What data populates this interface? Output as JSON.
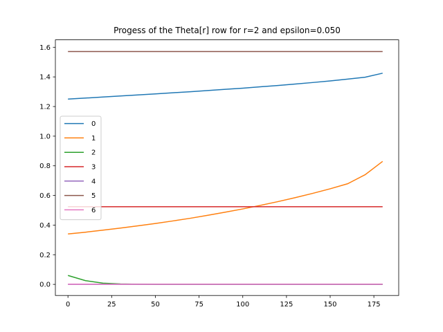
{
  "chart_data": {
    "type": "line",
    "title": "Progess of the Theta[r] row for r=2 and epsilon=0.050",
    "xlabel": "",
    "ylabel": "",
    "xlim": [
      -7.2,
      189.2
    ],
    "ylim": [
      -0.075,
      1.65
    ],
    "x_ticks": [
      0,
      25,
      50,
      75,
      100,
      125,
      150,
      175
    ],
    "y_ticks": [
      0.0,
      0.2,
      0.4,
      0.6,
      0.8,
      1.0,
      1.2,
      1.4,
      1.6
    ],
    "x_tick_labels": [
      "0",
      "25",
      "50",
      "75",
      "100",
      "125",
      "150",
      "175"
    ],
    "y_tick_labels": [
      "0.0",
      "0.2",
      "0.4",
      "0.6",
      "0.8",
      "1.0",
      "1.2",
      "1.4",
      "1.6"
    ],
    "grid": false,
    "legend": {
      "placement": "center-left"
    },
    "x": [
      0,
      10,
      20,
      30,
      40,
      50,
      60,
      70,
      80,
      90,
      100,
      110,
      120,
      130,
      140,
      150,
      160,
      170,
      180
    ],
    "series": [
      {
        "name": "0",
        "color": "#1f77b4",
        "values": [
          1.25,
          1.257,
          1.264,
          1.271,
          1.278,
          1.285,
          1.293,
          1.3,
          1.308,
          1.316,
          1.324,
          1.333,
          1.342,
          1.352,
          1.362,
          1.373,
          1.385,
          1.398,
          1.425
        ]
      },
      {
        "name": "1",
        "color": "#ff7f0e",
        "values": [
          0.34,
          0.352,
          0.366,
          0.38,
          0.395,
          0.411,
          0.428,
          0.446,
          0.466,
          0.487,
          0.509,
          0.533,
          0.558,
          0.585,
          0.614,
          0.645,
          0.679,
          0.74,
          0.83
        ]
      },
      {
        "name": "2",
        "color": "#2ca02c",
        "values": [
          0.06,
          0.025,
          0.008,
          0.003,
          0.001,
          0.0,
          0.0,
          0.0,
          0.0,
          0.0,
          0.0,
          0.0,
          0.0,
          0.0,
          0.0,
          0.0,
          0.0,
          0.0,
          0.0
        ]
      },
      {
        "name": "3",
        "color": "#d62728",
        "values": [
          0.524,
          0.524,
          0.524,
          0.524,
          0.524,
          0.524,
          0.524,
          0.524,
          0.524,
          0.524,
          0.524,
          0.524,
          0.524,
          0.524,
          0.524,
          0.524,
          0.524,
          0.524,
          0.524
        ]
      },
      {
        "name": "4",
        "color": "#9467bd",
        "values": [
          0.0,
          0.0,
          0.0,
          0.0,
          0.0,
          0.0,
          0.0,
          0.0,
          0.0,
          0.0,
          0.0,
          0.0,
          0.0,
          0.0,
          0.0,
          0.0,
          0.0,
          0.0,
          0.0
        ]
      },
      {
        "name": "5",
        "color": "#8c564b",
        "values": [
          1.571,
          1.571,
          1.571,
          1.571,
          1.571,
          1.571,
          1.571,
          1.571,
          1.571,
          1.571,
          1.571,
          1.571,
          1.571,
          1.571,
          1.571,
          1.571,
          1.571,
          1.571,
          1.571
        ]
      },
      {
        "name": "6",
        "color": "#e377c2",
        "values": [
          0.001,
          0.001,
          0.001,
          0.001,
          0.001,
          0.001,
          0.001,
          0.001,
          0.001,
          0.001,
          0.001,
          0.001,
          0.001,
          0.001,
          0.001,
          0.001,
          0.001,
          0.001,
          0.001
        ]
      }
    ]
  }
}
